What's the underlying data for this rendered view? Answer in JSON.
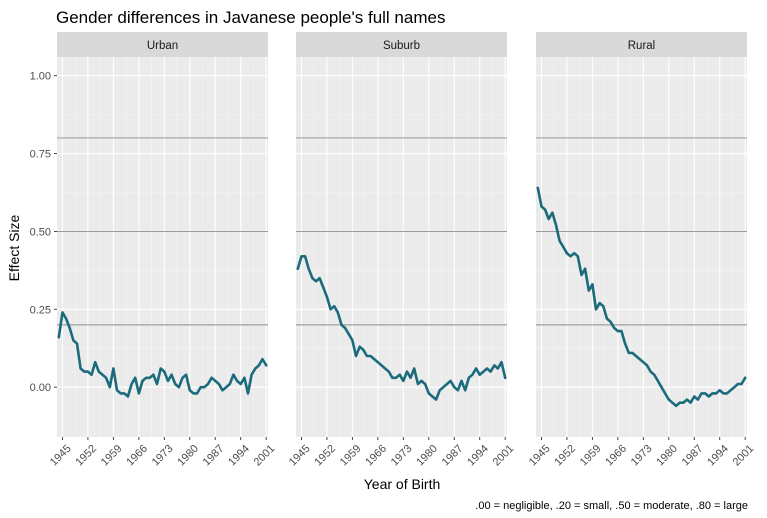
{
  "chart_data": {
    "type": "line",
    "title": "Gender differences in Javanese people's full names",
    "xlabel": "Year of Birth",
    "ylabel": "Effect Size",
    "caption": ".00 = negligible, .20 = small, .50 = moderate, .80 = large",
    "x_ticks": [
      "1945",
      "1952",
      "1959",
      "1966",
      "1973",
      "1980",
      "1987",
      "1994",
      "2001"
    ],
    "y_ticks": [
      "0.00",
      "0.25",
      "0.50",
      "0.75",
      "1.00"
    ],
    "xlim": [
      1943.5,
      2001.5
    ],
    "ylim": [
      -0.16,
      1.06
    ],
    "reference_lines": [
      0.2,
      0.5,
      0.8
    ],
    "line_color": "#1b6b7d",
    "panel_background": "#ebebeb",
    "strip_background": "#d9d9d9",
    "grid": true,
    "panels": [
      {
        "name": "Urban",
        "x": [
          1944,
          1945,
          1946,
          1947,
          1948,
          1949,
          1950,
          1951,
          1952,
          1953,
          1954,
          1955,
          1956,
          1957,
          1958,
          1959,
          1960,
          1961,
          1962,
          1963,
          1964,
          1965,
          1966,
          1967,
          1968,
          1969,
          1970,
          1971,
          1972,
          1973,
          1974,
          1975,
          1976,
          1977,
          1978,
          1979,
          1980,
          1981,
          1982,
          1983,
          1984,
          1985,
          1986,
          1987,
          1988,
          1989,
          1990,
          1991,
          1992,
          1993,
          1994,
          1995,
          1996,
          1997,
          1998,
          1999,
          2000,
          2001
        ],
        "y": [
          0.16,
          0.24,
          0.22,
          0.19,
          0.15,
          0.14,
          0.06,
          0.05,
          0.05,
          0.04,
          0.08,
          0.05,
          0.04,
          0.03,
          0.0,
          0.06,
          -0.01,
          -0.02,
          -0.02,
          -0.03,
          0.01,
          0.03,
          -0.02,
          0.02,
          0.03,
          0.03,
          0.04,
          0.01,
          0.06,
          0.05,
          0.02,
          0.04,
          0.01,
          0.0,
          0.03,
          0.04,
          -0.01,
          -0.02,
          -0.02,
          0.0,
          0.0,
          0.01,
          0.03,
          0.02,
          0.01,
          -0.01,
          0.0,
          0.01,
          0.04,
          0.02,
          0.01,
          0.03,
          -0.02,
          0.04,
          0.06,
          0.07,
          0.09,
          0.07
        ]
      },
      {
        "name": "Suburb",
        "x": [
          1944,
          1945,
          1946,
          1947,
          1948,
          1949,
          1950,
          1951,
          1952,
          1953,
          1954,
          1955,
          1956,
          1957,
          1958,
          1959,
          1960,
          1961,
          1962,
          1963,
          1964,
          1965,
          1966,
          1967,
          1968,
          1969,
          1970,
          1971,
          1972,
          1973,
          1974,
          1975,
          1976,
          1977,
          1978,
          1979,
          1980,
          1981,
          1982,
          1983,
          1984,
          1985,
          1986,
          1987,
          1988,
          1989,
          1990,
          1991,
          1992,
          1993,
          1994,
          1995,
          1996,
          1997,
          1998,
          1999,
          2000,
          2001
        ],
        "y": [
          0.38,
          0.42,
          0.42,
          0.38,
          0.35,
          0.34,
          0.35,
          0.32,
          0.29,
          0.25,
          0.26,
          0.24,
          0.2,
          0.19,
          0.17,
          0.15,
          0.1,
          0.13,
          0.12,
          0.1,
          0.1,
          0.09,
          0.08,
          0.07,
          0.06,
          0.05,
          0.03,
          0.03,
          0.04,
          0.02,
          0.05,
          0.03,
          0.06,
          0.01,
          0.02,
          0.01,
          -0.02,
          -0.03,
          -0.04,
          -0.01,
          0.0,
          0.01,
          0.02,
          0.0,
          -0.01,
          0.02,
          -0.01,
          0.03,
          0.04,
          0.06,
          0.04,
          0.05,
          0.06,
          0.05,
          0.07,
          0.06,
          0.08,
          0.03
        ]
      },
      {
        "name": "Rural",
        "x": [
          1944,
          1945,
          1946,
          1947,
          1948,
          1949,
          1950,
          1951,
          1952,
          1953,
          1954,
          1955,
          1956,
          1957,
          1958,
          1959,
          1960,
          1961,
          1962,
          1963,
          1964,
          1965,
          1966,
          1967,
          1968,
          1969,
          1970,
          1971,
          1972,
          1973,
          1974,
          1975,
          1976,
          1977,
          1978,
          1979,
          1980,
          1981,
          1982,
          1983,
          1984,
          1985,
          1986,
          1987,
          1988,
          1989,
          1990,
          1991,
          1992,
          1993,
          1994,
          1995,
          1996,
          1997,
          1998,
          1999,
          2000,
          2001
        ],
        "y": [
          0.64,
          0.58,
          0.57,
          0.54,
          0.56,
          0.52,
          0.47,
          0.45,
          0.43,
          0.42,
          0.43,
          0.42,
          0.36,
          0.38,
          0.31,
          0.33,
          0.25,
          0.27,
          0.26,
          0.22,
          0.21,
          0.19,
          0.18,
          0.18,
          0.14,
          0.11,
          0.11,
          0.1,
          0.09,
          0.08,
          0.07,
          0.05,
          0.04,
          0.02,
          0.0,
          -0.02,
          -0.04,
          -0.05,
          -0.06,
          -0.05,
          -0.05,
          -0.04,
          -0.05,
          -0.03,
          -0.04,
          -0.02,
          -0.02,
          -0.03,
          -0.02,
          -0.02,
          -0.01,
          -0.02,
          -0.02,
          -0.01,
          0.0,
          0.01,
          0.01,
          0.03
        ]
      }
    ]
  }
}
